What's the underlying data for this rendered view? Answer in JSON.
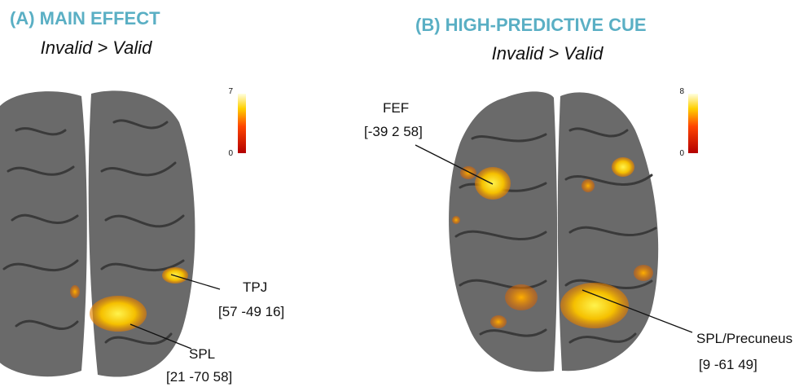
{
  "panels": [
    {
      "title": "(A) MAIN EFFECT",
      "subtitle": "Invalid > Valid",
      "colorbar": {
        "max": 7,
        "min": 0
      },
      "labels": [
        {
          "name": "TPJ",
          "coords": "[57 -49 16]"
        },
        {
          "name": "SPL",
          "coords": "[21 -70 58]"
        }
      ]
    },
    {
      "title": "(B) HIGH-PREDICTIVE CUE",
      "subtitle": "Invalid > Valid",
      "colorbar": {
        "max": 8,
        "min": 0
      },
      "labels": [
        {
          "name": "FEF",
          "coords": "[-39 2 58]"
        },
        {
          "name": "SPL/Precuneus",
          "coords": "[9 -61 49]"
        }
      ]
    }
  ]
}
